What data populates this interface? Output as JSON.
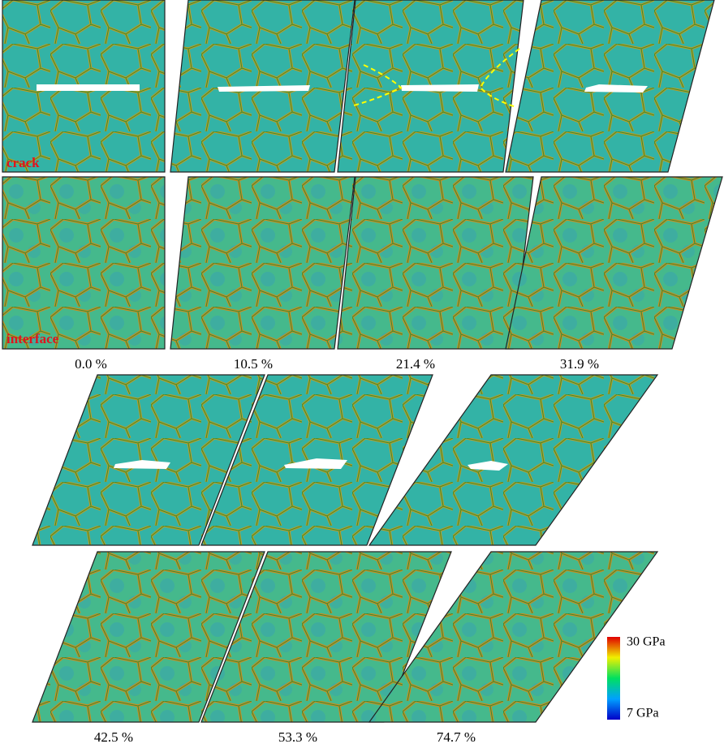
{
  "row_labels": [
    "crack",
    "interface"
  ],
  "strains": [
    "0.0 %",
    "10.5 %",
    "21.4 %",
    "31.9 %",
    "42.5 %",
    "53.3 %",
    "74.7 %"
  ],
  "colorbar": {
    "max": "30 GPa",
    "min": "7 GPa"
  }
}
